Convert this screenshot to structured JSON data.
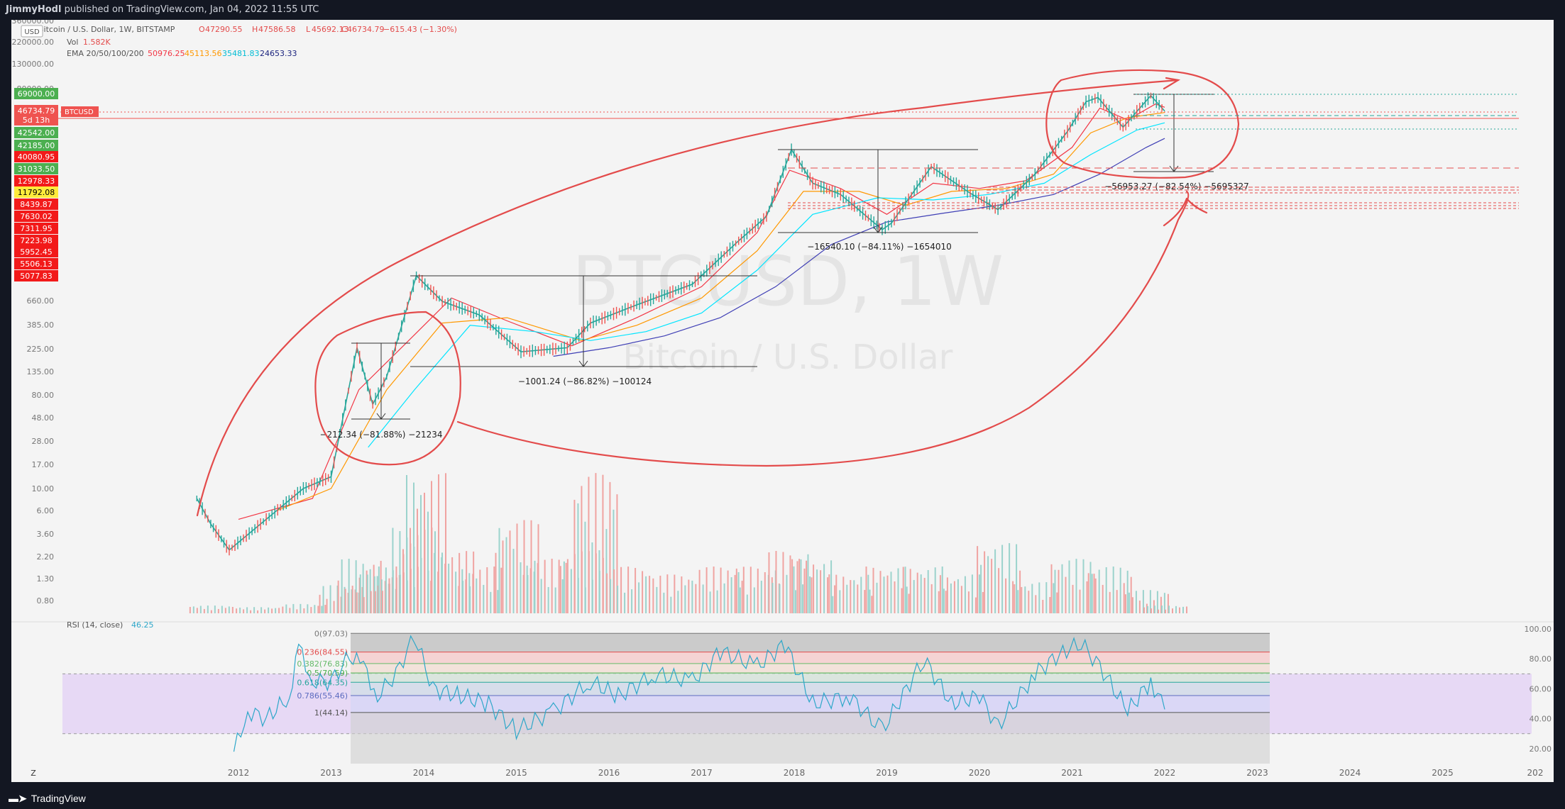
{
  "header": {
    "author": "JimmyHodl",
    "published_text": "published on TradingView.com, Jan 04, 2022 11:55 UTC"
  },
  "footer": {
    "brand": "TradingView",
    "z_button": "Z"
  },
  "colors": {
    "up": "#26a69a",
    "down": "#ef5350",
    "drawing": "#e34b4b",
    "ema20": "#f23645",
    "ema50": "#ff9800",
    "ema100": "#00e5ff",
    "ema200": "#3f3fb5",
    "rsi": "#2ea7c9",
    "rsi_band": "#e3d2f5"
  },
  "chart_data": {
    "type": "candlestick",
    "watermark": {
      "symbol": "BTCUSD, 1W",
      "name": "Bitcoin / U.S. Dollar"
    },
    "legend": {
      "symbol_line": "Bitcoin / U.S. Dollar, 1W, BITSTAMP",
      "ohlc": {
        "O": "47290.55",
        "H": "47586.58",
        "L": "45692.13",
        "C": "46734.79",
        "change": "−615.43 (−1.30%)"
      },
      "vol_label": "Vol",
      "vol_value": "1.582K",
      "ema_label": "EMA 20/50/100/200",
      "ema_values": [
        "50976.25",
        "45113.56",
        "35481.83",
        "24653.33"
      ]
    },
    "currency": "USD",
    "price_scale": {
      "type": "log",
      "ticks": [
        "360000.00",
        "220000.00",
        "130000.00",
        "80000.00",
        "660.00",
        "385.00",
        "225.00",
        "135.00",
        "80.00",
        "48.00",
        "28.00",
        "17.00",
        "10.00",
        "6.00",
        "3.60",
        "2.20",
        "1.30",
        "0.80"
      ]
    },
    "price_labels": [
      {
        "text": "69000.00",
        "kind": "up"
      },
      {
        "text": "46734.79",
        "kind": "current"
      },
      {
        "text": "5d 13h",
        "kind": "current"
      },
      {
        "text": "42542.00",
        "kind": "up"
      },
      {
        "text": "42185.00",
        "kind": "up"
      },
      {
        "text": "40080.95",
        "kind": "down"
      },
      {
        "text": "31033.50",
        "kind": "up"
      },
      {
        "text": "12978.33",
        "kind": "down"
      },
      {
        "text": "11792.08",
        "kind": "yellow"
      },
      {
        "text": "8439.87",
        "kind": "down"
      },
      {
        "text": "7630.02",
        "kind": "down"
      },
      {
        "text": "7311.95",
        "kind": "down"
      },
      {
        "text": "7223.98",
        "kind": "down"
      },
      {
        "text": "5952.45",
        "kind": "down"
      },
      {
        "text": "5506.13",
        "kind": "down"
      },
      {
        "text": "5077.83",
        "kind": "down"
      }
    ],
    "symbol_tag": "BTCUSD",
    "x_ticks": [
      "2012",
      "2013",
      "2014",
      "2015",
      "2016",
      "2017",
      "2018",
      "2019",
      "2020",
      "2021",
      "2022",
      "2023",
      "2024",
      "2025",
      "202"
    ],
    "price_series": {
      "x": [
        2011.55,
        2011.7,
        2011.9,
        2012.3,
        2012.7,
        2013.0,
        2013.28,
        2013.45,
        2013.6,
        2013.92,
        2014.2,
        2014.6,
        2015.05,
        2015.55,
        2015.8,
        2016.3,
        2016.9,
        2017.4,
        2017.7,
        2017.97,
        2018.2,
        2018.5,
        2018.95,
        2019.05,
        2019.48,
        2019.9,
        2020.2,
        2020.6,
        2020.95,
        2021.15,
        2021.28,
        2021.55,
        2021.85,
        2022.0
      ],
      "y": [
        8,
        4.5,
        2.5,
        5,
        10,
        13,
        230,
        65,
        120,
        1150,
        650,
        480,
        210,
        230,
        400,
        600,
        950,
        2500,
        4300,
        19000,
        9000,
        7000,
        3200,
        3700,
        13000,
        7200,
        5000,
        11000,
        29000,
        58000,
        64000,
        32000,
        67000,
        46734
      ]
    },
    "ema_series": [
      {
        "label": "20",
        "x": [
          2012.0,
          2012.8,
          2013.3,
          2013.8,
          2014.3,
          2014.9,
          2015.6,
          2016.3,
          2017.0,
          2017.6,
          2017.95,
          2018.5,
          2019.0,
          2019.5,
          2020.0,
          2020.5,
          2021.0,
          2021.3,
          2021.6,
          2021.9,
          2022.0
        ],
        "y": [
          5,
          8,
          90,
          250,
          700,
          420,
          240,
          450,
          900,
          3000,
          12000,
          8000,
          4500,
          9000,
          8000,
          9500,
          20000,
          50000,
          38000,
          55000,
          50976
        ]
      },
      {
        "label": "50",
        "x": [
          2012.4,
          2013.0,
          2013.6,
          2014.2,
          2014.9,
          2015.7,
          2016.3,
          2017.0,
          2017.6,
          2018.1,
          2018.7,
          2019.2,
          2019.7,
          2020.3,
          2020.8,
          2021.2,
          2021.6,
          2022.0
        ],
        "y": [
          6,
          10,
          90,
          400,
          450,
          270,
          380,
          700,
          2000,
          7500,
          7500,
          5500,
          7500,
          8000,
          11000,
          28000,
          40000,
          45113
        ]
      },
      {
        "label": "100",
        "x": [
          2013.4,
          2013.9,
          2014.5,
          2015.2,
          2015.8,
          2016.4,
          2017.0,
          2017.6,
          2018.2,
          2018.9,
          2019.5,
          2020.1,
          2020.7,
          2021.2,
          2021.7,
          2022.0
        ],
        "y": [
          25,
          90,
          380,
          330,
          270,
          330,
          500,
          1300,
          4500,
          6500,
          6200,
          7000,
          9000,
          17000,
          30000,
          35481
        ]
      },
      {
        "label": "200",
        "x": [
          2015.4,
          2016.0,
          2016.6,
          2017.2,
          2017.8,
          2018.4,
          2019.0,
          2019.6,
          2020.2,
          2020.8,
          2021.3,
          2021.8,
          2022.0
        ],
        "y": [
          190,
          230,
          300,
          450,
          900,
          2300,
          3800,
          4600,
          5500,
          7000,
          11000,
          20000,
          24653
        ]
      }
    ],
    "volume": {
      "x": [
        2011.7,
        2012.2,
        2012.7,
        2013.1,
        2013.3,
        2013.5,
        2013.7,
        2013.85,
        2014.0,
        2014.3,
        2014.6,
        2015.0,
        2015.3,
        2015.7,
        2015.85,
        2016.2,
        2016.7,
        2017.2,
        2017.6,
        2017.95,
        2018.2,
        2018.6,
        2019.0,
        2019.4,
        2019.8,
        2020.2,
        2020.6,
        2021.0,
        2021.4,
        2021.8,
        2022.0
      ],
      "values": [
        0.05,
        0.04,
        0.06,
        0.18,
        0.35,
        0.25,
        0.3,
        0.55,
        0.9,
        0.4,
        0.3,
        0.6,
        0.35,
        0.4,
        0.9,
        0.3,
        0.25,
        0.3,
        0.3,
        0.4,
        0.35,
        0.25,
        0.3,
        0.3,
        0.25,
        0.45,
        0.2,
        0.35,
        0.3,
        0.15,
        0.05
      ]
    },
    "drawdown_labels": [
      "−212.34 (−81.88%) −21234",
      "−1001.24 (−86.82%) −100124",
      "−16540.10 (−84.11%) −1654010",
      "−56953.27 (−82.54%) −5695327"
    ],
    "rsi": {
      "label": "RSI (14, close)",
      "value": "46.25",
      "scale_ticks": [
        "100.00",
        "80.00",
        "60.00",
        "40.00",
        "20.00"
      ],
      "band": [
        30,
        70
      ],
      "x": [
        2011.95,
        2012.1,
        2012.3,
        2012.55,
        2012.65,
        2012.8,
        2013.0,
        2013.2,
        2013.35,
        2013.5,
        2013.7,
        2013.9,
        2014.1,
        2014.4,
        2014.7,
        2015.0,
        2015.4,
        2015.8,
        2016.1,
        2016.5,
        2016.9,
        2017.2,
        2017.6,
        2017.9,
        2018.2,
        2018.6,
        2018.95,
        2019.4,
        2019.7,
        2020.0,
        2020.2,
        2020.6,
        2020.9,
        2021.1,
        2021.3,
        2021.6,
        2021.85,
        2022.0
      ],
      "y": [
        18,
        45,
        40,
        55,
        88,
        65,
        65,
        82,
        75,
        55,
        70,
        95,
        60,
        55,
        50,
        32,
        45,
        65,
        55,
        70,
        65,
        85,
        75,
        90,
        50,
        55,
        32,
        80,
        50,
        55,
        35,
        70,
        85,
        90,
        75,
        45,
        65,
        46.25
      ]
    },
    "fib_levels": [
      {
        "label": "0(97.03)",
        "value": 97.03
      },
      {
        "label": "0.236(84.55)",
        "value": 84.55
      },
      {
        "label": "0.382(76.83)",
        "value": 76.83
      },
      {
        "label": "0.5(70.59)",
        "value": 70.59
      },
      {
        "label": "0.618(64.35)",
        "value": 64.35
      },
      {
        "label": "0.786(55.46)",
        "value": 55.46
      },
      {
        "label": "1(44.14)",
        "value": 44.14
      }
    ]
  }
}
